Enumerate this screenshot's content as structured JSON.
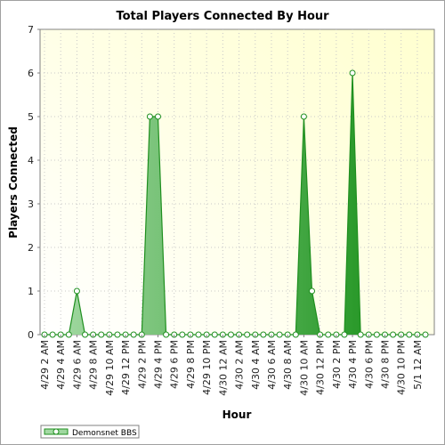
{
  "chart_data": {
    "type": "area",
    "title": "Total Players Connected By Hour",
    "xlabel": "Hour",
    "ylabel": "Players Connected",
    "ylim": [
      0,
      7
    ],
    "yticks": [
      "0",
      "1",
      "2",
      "3",
      "4",
      "5",
      "6",
      "7"
    ],
    "grid": true,
    "legend_position": "bottom-left",
    "x_tick_labels": [
      "4/29 2 AM",
      "4/29 4 AM",
      "4/29 6 AM",
      "4/29 8 AM",
      "4/29 10 AM",
      "4/29 12 PM",
      "4/29 2 PM",
      "4/29 4 PM",
      "4/29 6 PM",
      "4/29 8 PM",
      "4/29 10 PM",
      "4/30 12 AM",
      "4/30 2 AM",
      "4/30 4 AM",
      "4/30 6 AM",
      "4/30 8 AM",
      "4/30 10 AM",
      "4/30 12 PM",
      "4/30 2 PM",
      "4/30 4 PM",
      "4/30 6 PM",
      "4/30 8 PM",
      "4/30 10 PM",
      "5/1 12 AM"
    ],
    "series": [
      {
        "name": "Demonsnet BBS",
        "color": "#1f8f1f",
        "values": [
          0,
          0,
          0,
          0,
          1,
          0,
          0,
          0,
          0,
          0,
          0,
          0,
          0,
          5,
          5,
          0,
          0,
          0,
          0,
          0,
          0,
          0,
          0,
          0,
          0,
          0,
          0,
          0,
          0,
          0,
          0,
          0,
          5,
          1,
          0,
          0,
          0,
          0,
          6,
          0,
          0,
          0,
          0,
          0,
          0,
          0,
          0,
          0
        ]
      }
    ]
  },
  "colors": {
    "plot_bg_light": "#ffffcf",
    "line": "#1f8f1f",
    "area_light": "#9ed69e",
    "area_dark": "#129312"
  }
}
